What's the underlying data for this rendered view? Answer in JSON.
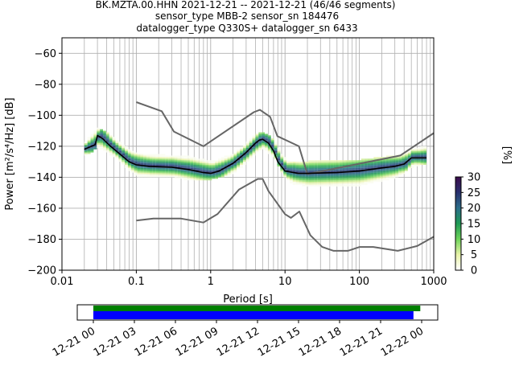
{
  "title_lines": [
    "BK.MZTA.00.HHN   2021-12-21 -- 2021-12-21  (46/46 segments)",
    "sensor_type MBB-2 sensor_sn 184476",
    "datalogger_type Q330S+ datalogger_sn 6433"
  ],
  "chart_data": {
    "type": "ppsd",
    "xlabel": "Period [s]",
    "ylabel": "Power [m²/s⁴/Hz] [dB]",
    "xscale": "log",
    "xlim": [
      0.01,
      1000
    ],
    "ylim": [
      -200,
      -50
    ],
    "x_ticks": [
      0.01,
      0.1,
      1,
      10,
      100,
      1000
    ],
    "x_tick_labels": [
      "0.01",
      "0.1",
      "1",
      "10",
      "100",
      "1000"
    ],
    "y_ticks": [
      -200,
      -180,
      -160,
      -140,
      -120,
      -100,
      -80,
      -60
    ],
    "y_tick_labels": [
      "−200",
      "−180",
      "−160",
      "−140",
      "−120",
      "−100",
      "−80",
      "−60"
    ],
    "grid": true,
    "series": [
      {
        "role": "noise-model-high",
        "color": "#666666",
        "points": [
          [
            0.1,
            -91.5
          ],
          [
            0.22,
            -97.4
          ],
          [
            0.32,
            -110.5
          ],
          [
            0.8,
            -120
          ],
          [
            3.8,
            -98
          ],
          [
            4.6,
            -96.5
          ],
          [
            6.3,
            -101
          ],
          [
            7.9,
            -113.5
          ],
          [
            15.4,
            -120
          ],
          [
            20,
            -138
          ],
          [
            354.8,
            -126
          ],
          [
            1000,
            -111.5
          ]
        ]
      },
      {
        "role": "noise-model-low",
        "color": "#666666",
        "points": [
          [
            0.1,
            -168
          ],
          [
            0.17,
            -166.7
          ],
          [
            0.4,
            -166.7
          ],
          [
            0.8,
            -169.2
          ],
          [
            1.24,
            -163.7
          ],
          [
            2.4,
            -148
          ],
          [
            4.3,
            -141.1
          ],
          [
            5,
            -141.1
          ],
          [
            6,
            -149
          ],
          [
            10,
            -163.8
          ],
          [
            12,
            -166.2
          ],
          [
            15.6,
            -162.1
          ],
          [
            21.9,
            -177.5
          ],
          [
            31.6,
            -185
          ],
          [
            45,
            -187.5
          ],
          [
            70,
            -187.5
          ],
          [
            101,
            -185
          ],
          [
            154,
            -185
          ],
          [
            328,
            -187.5
          ],
          [
            600,
            -184.4
          ],
          [
            1000,
            -178.4
          ]
        ]
      },
      {
        "role": "mode",
        "color": "#000000",
        "points": [
          [
            0.02,
            -122
          ],
          [
            0.025,
            -120
          ],
          [
            0.028,
            -119
          ],
          [
            0.03,
            -113
          ],
          [
            0.035,
            -115
          ],
          [
            0.045,
            -120
          ],
          [
            0.06,
            -125
          ],
          [
            0.08,
            -130
          ],
          [
            0.1,
            -132
          ],
          [
            0.15,
            -133
          ],
          [
            0.3,
            -133.5
          ],
          [
            0.5,
            -135
          ],
          [
            0.8,
            -137
          ],
          [
            1,
            -137.5
          ],
          [
            1.3,
            -136
          ],
          [
            2,
            -131
          ],
          [
            3,
            -124
          ],
          [
            4,
            -118
          ],
          [
            4.5,
            -116
          ],
          [
            5,
            -115.5
          ],
          [
            6,
            -118
          ],
          [
            7,
            -123
          ],
          [
            8,
            -130
          ],
          [
            10,
            -136
          ],
          [
            15,
            -137.5
          ],
          [
            20,
            -137.5
          ],
          [
            50,
            -137
          ],
          [
            100,
            -136
          ],
          [
            200,
            -134
          ],
          [
            300,
            -133
          ],
          [
            400,
            -131.5
          ],
          [
            500,
            -127.5
          ],
          [
            800,
            -127.5
          ]
        ]
      }
    ],
    "spread": {
      "upper": [
        [
          0.02,
          -118
        ],
        [
          0.03,
          -109
        ],
        [
          0.045,
          -115
        ],
        [
          0.08,
          -124
        ],
        [
          0.1,
          -126
        ],
        [
          0.5,
          -128
        ],
        [
          1,
          -131
        ],
        [
          2,
          -126
        ],
        [
          4,
          -113
        ],
        [
          5,
          -112
        ],
        [
          7,
          -118
        ],
        [
          9,
          -128
        ],
        [
          12,
          -132
        ],
        [
          20,
          -131
        ],
        [
          100,
          -130
        ],
        [
          300,
          -127
        ],
        [
          500,
          -123
        ],
        [
          800,
          -121
        ]
      ],
      "lower": [
        [
          0.02,
          -126
        ],
        [
          0.03,
          -120
        ],
        [
          0.05,
          -127
        ],
        [
          0.08,
          -136
        ],
        [
          0.1,
          -139
        ],
        [
          0.3,
          -140
        ],
        [
          0.6,
          -142
        ],
        [
          1,
          -141
        ],
        [
          2,
          -137
        ],
        [
          4,
          -124
        ],
        [
          5,
          -121
        ],
        [
          7,
          -128
        ],
        [
          9,
          -138
        ],
        [
          12,
          -144
        ],
        [
          20,
          -146
        ],
        [
          100,
          -145
        ],
        [
          300,
          -140
        ],
        [
          500,
          -133
        ],
        [
          800,
          -131
        ]
      ]
    },
    "colorbar": {
      "label": "[%]",
      "range": [
        0,
        30
      ],
      "ticks": [
        0,
        5,
        10,
        15,
        20,
        25,
        30
      ],
      "tick_labels": [
        "0",
        "5",
        "10",
        "15",
        "20",
        "25",
        "30"
      ],
      "colors": [
        "#ffffff",
        "#e8f2a8",
        "#6fd45a",
        "#1e9a55",
        "#2c6e8a",
        "#28306e",
        "#3b0b4b"
      ]
    }
  },
  "timeline": {
    "range": [
      "2021-12-21 00:00",
      "2021-12-22 01:00"
    ],
    "bars": [
      {
        "color": "#008000",
        "start_h": 0,
        "end_h": 23.9
      },
      {
        "color": "#0000ff",
        "start_h": 0,
        "end_h": 23.4
      }
    ],
    "tick_hours": [
      0,
      3,
      6,
      9,
      12,
      15,
      18,
      21,
      24
    ],
    "tick_labels": [
      "12-21 00",
      "12-21 03",
      "12-21 06",
      "12-21 09",
      "12-21 12",
      "12-21 15",
      "12-21 18",
      "12-21 21",
      "12-22 00"
    ]
  }
}
